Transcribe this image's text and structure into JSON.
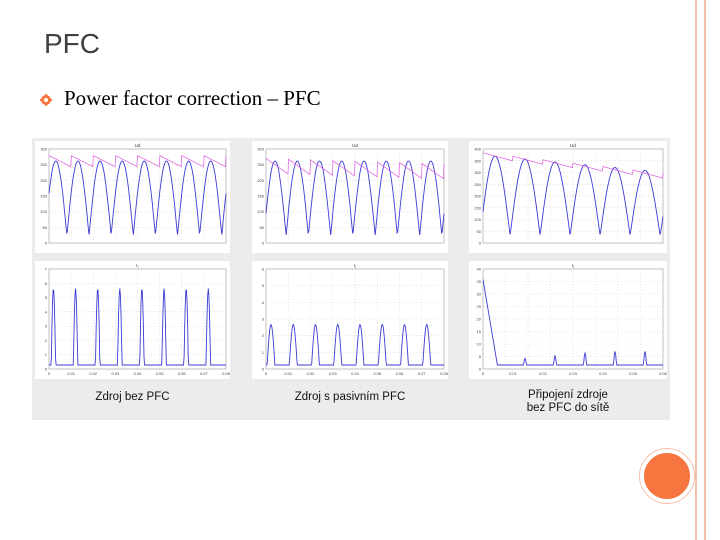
{
  "slide": {
    "title": "PFC",
    "bullet": "Power factor correction – PFC"
  },
  "colors": {
    "accent_orange": "#f7763f",
    "decor_lines": "#f5c0aa",
    "voltage_trace": "#e05ae0",
    "current_trace": "#3b3bd6"
  },
  "figure": {
    "panels": [
      {
        "top_plot_title": "Ud",
        "top_y_ticks": [
          "300",
          "250",
          "200",
          "150",
          "100",
          "50",
          "0"
        ],
        "bottom_plot_title": "I₁",
        "bottom_y_ticks": [
          "7",
          "6",
          "5",
          "4",
          "3",
          "2",
          "1",
          "0"
        ],
        "x_ticks": [
          "0",
          "0.01",
          "0.02",
          "0.03",
          "0.04",
          "0.05",
          "0.06",
          "0.07",
          "0.08"
        ],
        "caption_lines": [
          "Zdroj bez PFC"
        ]
      },
      {
        "top_plot_title": "Ud",
        "top_y_ticks": [
          "300",
          "250",
          "200",
          "150",
          "100",
          "50",
          "0"
        ],
        "bottom_plot_title": "I₁",
        "bottom_y_ticks": [
          "6",
          "5",
          "4",
          "3",
          "2",
          "1",
          "0"
        ],
        "x_ticks": [
          "0",
          "0.01",
          "0.02",
          "0.03",
          "0.04",
          "0.05",
          "0.06",
          "0.07",
          "0.08"
        ],
        "caption_lines": [
          "Zdroj s pasivním PFC"
        ]
      },
      {
        "top_plot_title": "Ud",
        "top_y_ticks": [
          "400",
          "350",
          "300",
          "250",
          "200",
          "150",
          "100",
          "50",
          "0"
        ],
        "bottom_plot_title": "I₁",
        "bottom_y_ticks": [
          "40",
          "35",
          "30",
          "25",
          "20",
          "15",
          "10",
          "5",
          "0"
        ],
        "x_ticks": [
          "0",
          "0.01",
          "0.02",
          "0.03",
          "0.04",
          "0.05",
          "0.06"
        ],
        "caption_lines": [
          "Připojení zdroje",
          "bez PFC do sítě"
        ]
      }
    ]
  }
}
